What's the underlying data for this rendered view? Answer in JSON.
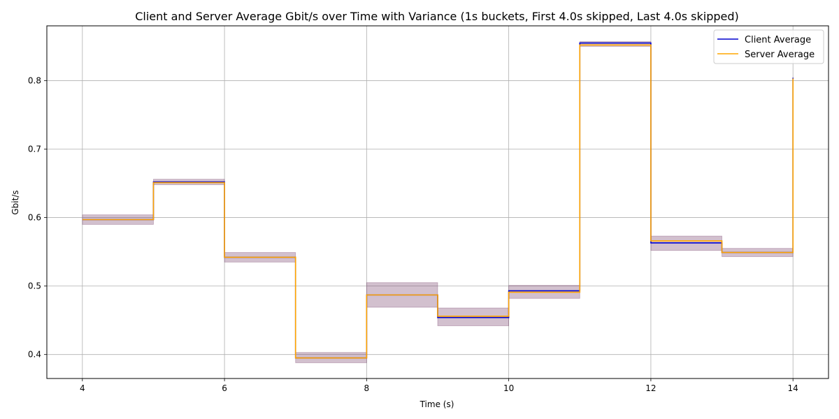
{
  "chart_data": {
    "type": "line",
    "title": "Client and Server Average Gbit/s over Time with Variance (1s buckets, First 4.0s skipped, Last 4.0s skipped)",
    "xlabel": "Time (s)",
    "ylabel": "Gbit/s",
    "xlim": [
      3.5,
      14.5
    ],
    "ylim": [
      0.365,
      0.88
    ],
    "x_ticks": [
      4,
      6,
      8,
      10,
      12,
      14
    ],
    "y_ticks": [
      0.4,
      0.5,
      0.6,
      0.7,
      0.8
    ],
    "grid": true,
    "legend_position": "top-right",
    "step": "post",
    "x": [
      4,
      5,
      6,
      7,
      8,
      9,
      10,
      11,
      12,
      13,
      14
    ],
    "series": [
      {
        "name": "Client Average",
        "color": "#0000cd",
        "values": [
          0.597,
          0.652,
          0.542,
          0.395,
          0.487,
          0.454,
          0.493,
          0.855,
          0.563,
          0.549,
          0.804
        ]
      },
      {
        "name": "Server Average",
        "color": "#ffa500",
        "values": [
          0.597,
          0.651,
          0.542,
          0.395,
          0.487,
          0.456,
          0.491,
          0.852,
          0.566,
          0.549,
          0.803
        ]
      }
    ],
    "variance_bands": {
      "color": "#6b2d5c",
      "lower": [
        0.59,
        0.648,
        0.535,
        0.388,
        0.469,
        0.442,
        0.482,
        0.85,
        0.552,
        0.543,
        0.803
      ],
      "upper": [
        0.604,
        0.656,
        0.549,
        0.403,
        0.505,
        0.468,
        0.501,
        0.857,
        0.573,
        0.555,
        0.805
      ]
    }
  }
}
